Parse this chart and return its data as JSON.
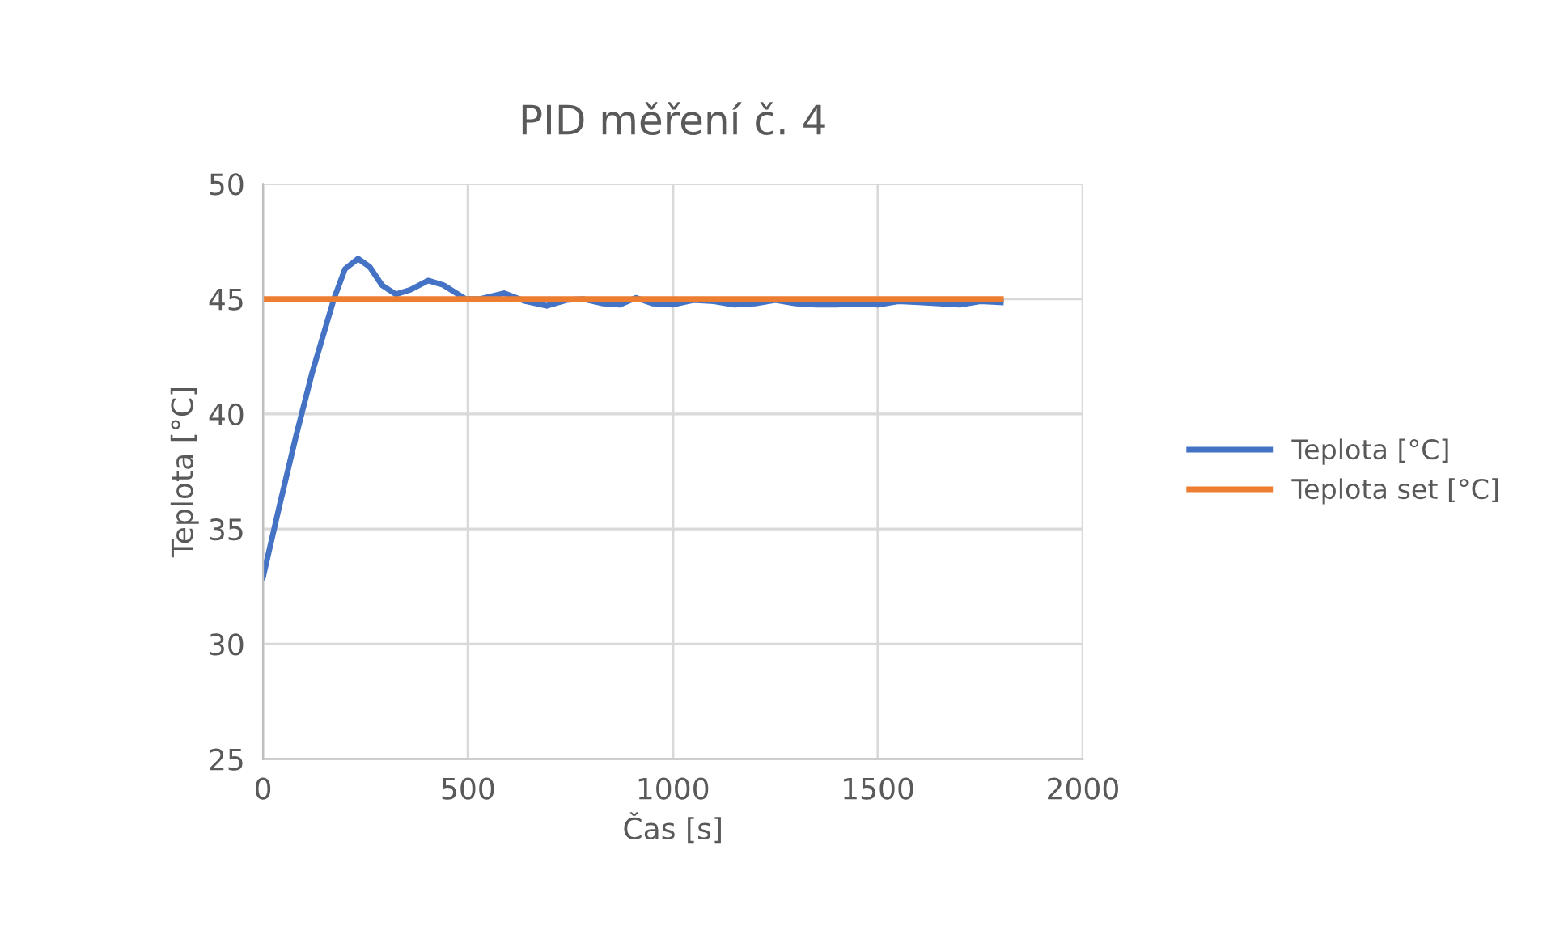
{
  "chart_data": {
    "type": "line",
    "title": "PID měření č. 4",
    "xlabel": "Čas [s]",
    "ylabel": "Teplota [°C]",
    "xlim": [
      0,
      2000
    ],
    "xticks": [
      0,
      500,
      1000,
      1500,
      2000
    ],
    "ylim": [
      25,
      50
    ],
    "yticks": [
      25,
      30,
      35,
      40,
      45,
      50
    ],
    "grid": true,
    "legend": "right",
    "marker": "none",
    "line_style": "solid",
    "series": [
      {
        "name": "Teplota [°C]",
        "color": "#4472c4",
        "x": [
          0,
          40,
          80,
          120,
          173,
          200,
          232,
          260,
          290,
          324,
          360,
          403,
          440,
          494,
          530,
          588,
          640,
          692,
          740,
          780,
          830,
          870,
          910,
          950,
          1000,
          1050,
          1100,
          1150,
          1200,
          1250,
          1300,
          1350,
          1400,
          1450,
          1500,
          1550,
          1600,
          1650,
          1700,
          1750,
          1800
        ],
        "values": [
          32.9,
          36.0,
          39.0,
          41.8,
          45.0,
          46.3,
          46.75,
          46.4,
          45.6,
          45.2,
          45.4,
          45.8,
          45.6,
          45.0,
          45.0,
          45.25,
          44.9,
          44.7,
          44.95,
          45.0,
          44.8,
          44.75,
          45.05,
          44.8,
          44.75,
          44.95,
          44.9,
          44.75,
          44.8,
          44.95,
          44.8,
          44.75,
          44.75,
          44.8,
          44.75,
          44.9,
          44.85,
          44.8,
          44.75,
          44.9,
          44.85
        ]
      },
      {
        "name": "Teplota set [°C]",
        "color": "#ed7d31",
        "x": [
          0,
          1800
        ],
        "values": [
          45,
          45
        ]
      }
    ]
  }
}
